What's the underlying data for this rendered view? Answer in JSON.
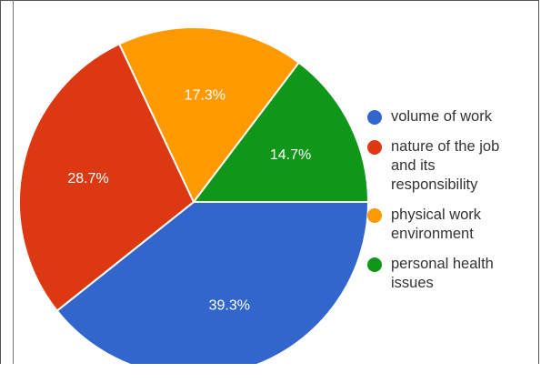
{
  "chart_data": {
    "type": "pie",
    "title": "",
    "slices": [
      {
        "label": "volume of work",
        "value": 39.3,
        "display": "39.3%",
        "color": "#3366cc"
      },
      {
        "label": "nature of the job and its responsibility",
        "value": 28.7,
        "display": "28.7%",
        "color": "#dc3912"
      },
      {
        "label": "physical work environment",
        "value": 17.3,
        "display": "17.3%",
        "color": "#ff9900"
      },
      {
        "label": "personal health issues",
        "value": 14.7,
        "display": "14.7%",
        "color": "#109618"
      }
    ],
    "legend_position": "right",
    "legend": [
      {
        "lines": [
          "volume of work"
        ]
      },
      {
        "lines": [
          "nature of the job",
          "and its",
          "responsibility"
        ]
      },
      {
        "lines": [
          "physical work",
          "environment"
        ]
      },
      {
        "lines": [
          "personal health",
          "issues"
        ]
      }
    ]
  }
}
